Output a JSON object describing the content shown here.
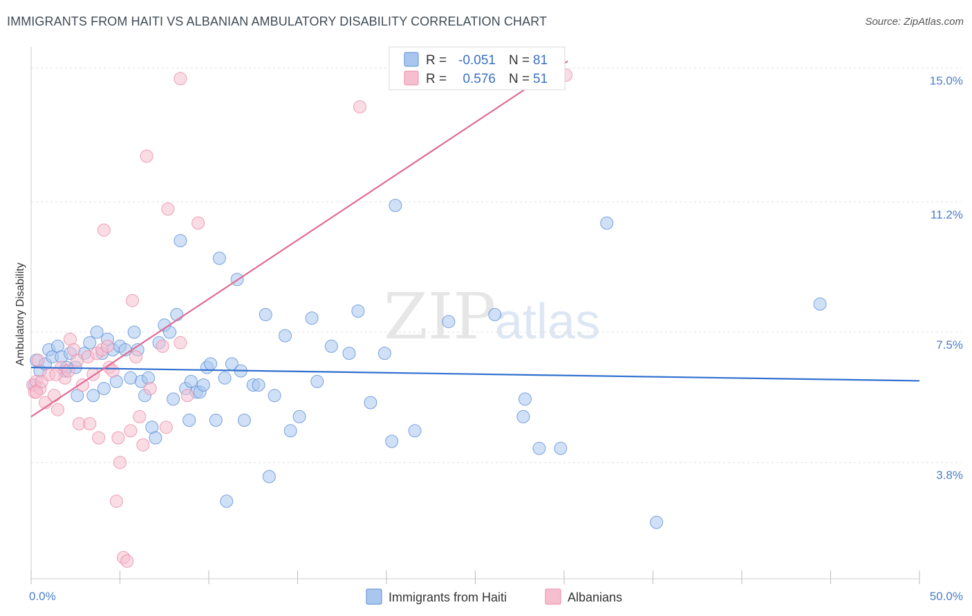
{
  "header": {
    "title": "IMMIGRANTS FROM HAITI VS ALBANIAN AMBULATORY DISABILITY CORRELATION CHART",
    "source": "Source: ZipAtlas.com"
  },
  "watermark": {
    "zip": "ZIP",
    "atlas": "atlas"
  },
  "legend": {
    "rows": [
      {
        "r_label": "R =",
        "r_value": "-0.051",
        "n_label": "N =",
        "n_value": "81"
      },
      {
        "r_label": "R =",
        "r_value": "0.576",
        "n_label": "N =",
        "n_value": "51"
      }
    ]
  },
  "bottom_legend": [
    "Immigrants from Haiti",
    "Albanians"
  ],
  "colors": {
    "haiti_fill": "#a9c6ef",
    "haiti_stroke": "#5b8fd6",
    "haiti_line": "#2f6fcf",
    "albanian_fill": "#f6bfd0",
    "albanian_stroke": "#e88aa7",
    "albanian_line": "#e06a93",
    "tick_text": "#4a7cc7",
    "grid": "#dddddd"
  },
  "chart_data": {
    "type": "scatter",
    "title": "IMMIGRANTS FROM HAITI VS ALBANIAN AMBULATORY DISABILITY CORRELATION CHART",
    "xlabel": "",
    "ylabel": "Ambulatory Disability",
    "xlim": [
      0,
      50
    ],
    "ylim": [
      0.5,
      15.6
    ],
    "x_tick_labels": [
      "0.0%",
      "50.0%"
    ],
    "y_ticks": [
      {
        "value": 3.8,
        "label": "3.8%"
      },
      {
        "value": 7.5,
        "label": "7.5%"
      },
      {
        "value": 11.2,
        "label": "11.2%"
      },
      {
        "value": 15.0,
        "label": "15.0%"
      }
    ],
    "grid": true,
    "legend_position": "top-center",
    "series": [
      {
        "name": "Immigrants from Haiti",
        "r": -0.051,
        "n": 81,
        "trend": {
          "x": [
            0,
            50
          ],
          "y": [
            6.5,
            6.12
          ]
        },
        "points": [
          [
            0.3,
            6.7
          ],
          [
            0.5,
            6.4
          ],
          [
            0.8,
            6.6
          ],
          [
            1.0,
            7.0
          ],
          [
            1.2,
            6.8
          ],
          [
            1.5,
            7.1
          ],
          [
            1.7,
            6.8
          ],
          [
            2.0,
            6.5
          ],
          [
            2.2,
            6.9
          ],
          [
            2.5,
            6.5
          ],
          [
            2.6,
            5.7
          ],
          [
            3.0,
            6.9
          ],
          [
            3.3,
            7.2
          ],
          [
            3.5,
            5.7
          ],
          [
            3.7,
            7.5
          ],
          [
            4.0,
            6.9
          ],
          [
            4.1,
            5.9
          ],
          [
            4.3,
            7.3
          ],
          [
            4.6,
            7.0
          ],
          [
            4.8,
            6.1
          ],
          [
            5.0,
            7.1
          ],
          [
            5.3,
            7.0
          ],
          [
            5.6,
            6.2
          ],
          [
            5.8,
            7.5
          ],
          [
            6.0,
            7.0
          ],
          [
            6.2,
            6.1
          ],
          [
            6.4,
            5.7
          ],
          [
            6.6,
            6.2
          ],
          [
            6.8,
            4.8
          ],
          [
            7.0,
            4.5
          ],
          [
            7.2,
            7.2
          ],
          [
            7.5,
            7.7
          ],
          [
            7.8,
            7.5
          ],
          [
            8.0,
            5.6
          ],
          [
            8.2,
            8.0
          ],
          [
            8.4,
            10.1
          ],
          [
            8.7,
            5.9
          ],
          [
            8.9,
            5.0
          ],
          [
            9.0,
            6.1
          ],
          [
            9.3,
            5.8
          ],
          [
            9.5,
            5.8
          ],
          [
            9.7,
            6.0
          ],
          [
            9.9,
            6.5
          ],
          [
            10.1,
            6.6
          ],
          [
            10.4,
            5.0
          ],
          [
            10.6,
            9.6
          ],
          [
            10.9,
            6.2
          ],
          [
            11.0,
            2.7
          ],
          [
            11.3,
            6.6
          ],
          [
            11.6,
            9.0
          ],
          [
            11.8,
            6.4
          ],
          [
            12.0,
            5.0
          ],
          [
            12.5,
            6.0
          ],
          [
            12.8,
            6.0
          ],
          [
            13.2,
            8.0
          ],
          [
            13.4,
            3.4
          ],
          [
            13.7,
            5.7
          ],
          [
            14.3,
            7.4
          ],
          [
            14.6,
            4.7
          ],
          [
            15.1,
            5.1
          ],
          [
            15.8,
            7.9
          ],
          [
            16.1,
            6.1
          ],
          [
            16.9,
            7.1
          ],
          [
            17.9,
            6.9
          ],
          [
            18.4,
            8.1
          ],
          [
            19.1,
            5.5
          ],
          [
            19.9,
            6.9
          ],
          [
            20.3,
            4.4
          ],
          [
            20.5,
            11.1
          ],
          [
            21.6,
            4.7
          ],
          [
            23.5,
            7.8
          ],
          [
            26.1,
            8.0
          ],
          [
            27.7,
            5.1
          ],
          [
            27.8,
            5.6
          ],
          [
            28.6,
            4.2
          ],
          [
            29.8,
            4.2
          ],
          [
            32.4,
            10.6
          ],
          [
            35.2,
            2.1
          ],
          [
            44.4,
            8.3
          ],
          [
            0.2,
            6.0
          ],
          [
            1.9,
            6.4
          ]
        ]
      },
      {
        "name": "Albanians",
        "r": 0.576,
        "n": 51,
        "trend": {
          "x": [
            0,
            30.2
          ],
          "y": [
            5.1,
            15.2
          ]
        },
        "points": [
          [
            0.1,
            6.0
          ],
          [
            0.2,
            5.8
          ],
          [
            0.3,
            6.1
          ],
          [
            0.4,
            6.7
          ],
          [
            0.5,
            5.9
          ],
          [
            0.6,
            6.1
          ],
          [
            0.8,
            5.5
          ],
          [
            1.0,
            6.3
          ],
          [
            1.3,
            5.7
          ],
          [
            1.5,
            5.3
          ],
          [
            1.7,
            6.5
          ],
          [
            1.9,
            6.2
          ],
          [
            2.1,
            6.4
          ],
          [
            2.2,
            7.3
          ],
          [
            2.4,
            7.0
          ],
          [
            2.6,
            6.7
          ],
          [
            2.7,
            4.9
          ],
          [
            2.9,
            6.0
          ],
          [
            3.2,
            6.8
          ],
          [
            3.3,
            4.9
          ],
          [
            3.5,
            6.3
          ],
          [
            3.7,
            6.9
          ],
          [
            3.8,
            4.5
          ],
          [
            4.0,
            7.0
          ],
          [
            4.1,
            10.4
          ],
          [
            4.3,
            7.1
          ],
          [
            4.4,
            6.5
          ],
          [
            4.6,
            6.4
          ],
          [
            4.8,
            2.7
          ],
          [
            4.9,
            4.5
          ],
          [
            5.0,
            3.8
          ],
          [
            5.2,
            1.1
          ],
          [
            5.4,
            1.0
          ],
          [
            5.6,
            4.7
          ],
          [
            5.7,
            8.4
          ],
          [
            5.9,
            6.8
          ],
          [
            6.1,
            5.1
          ],
          [
            6.3,
            4.3
          ],
          [
            6.5,
            12.5
          ],
          [
            6.7,
            5.9
          ],
          [
            7.4,
            7.1
          ],
          [
            7.6,
            4.8
          ],
          [
            7.7,
            11.0
          ],
          [
            8.4,
            7.2
          ],
          [
            8.8,
            5.7
          ],
          [
            9.4,
            10.6
          ],
          [
            8.4,
            14.7
          ],
          [
            18.5,
            13.9
          ],
          [
            30.1,
            14.8
          ],
          [
            0.3,
            5.8
          ],
          [
            1.4,
            6.3
          ]
        ]
      }
    ]
  }
}
